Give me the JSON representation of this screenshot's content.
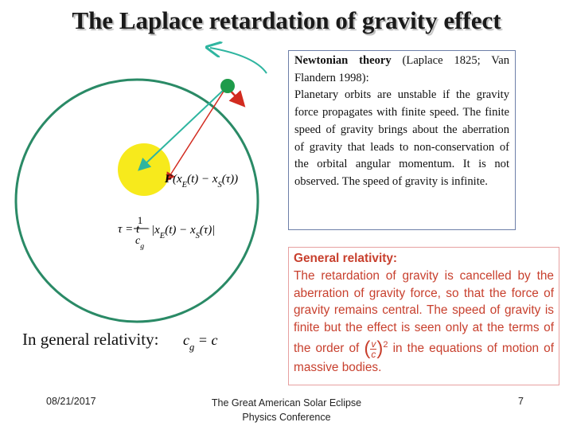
{
  "title": "The Laplace retardation of gravity effect",
  "formulas": {
    "force": [
      {
        "t": "F",
        "sub": false
      },
      {
        "t": "(x",
        "sub": false
      },
      {
        "t": "E",
        "sub": true
      },
      {
        "t": "(t) − x",
        "sub": false
      },
      {
        "t": "S",
        "sub": true
      },
      {
        "t": "(τ))",
        "sub": false
      }
    ],
    "retardation": {
      "lhs": "τ = t −",
      "num": "1",
      "den": [
        {
          "t": "c",
          "sub": false
        },
        {
          "t": "g",
          "sub": true
        }
      ],
      "rest": [
        {
          "t": "|x",
          "sub": false
        },
        {
          "t": "E",
          "sub": true
        },
        {
          "t": "(t) − x",
          "sub": false
        },
        {
          "t": "S",
          "sub": true
        },
        {
          "t": "(τ)|",
          "sub": false
        }
      ]
    },
    "gr": [
      {
        "t": "c",
        "sub": false
      },
      {
        "t": "g",
        "sub": true
      },
      {
        "t": " = c",
        "sub": false
      }
    ]
  },
  "gr_label": "In general relativity:",
  "newtonian": {
    "heading": "Newtonian theory",
    "cite": " (Laplace 1825; Van Flandern 1998):",
    "body": "Planetary orbits are unstable if the gravity force propagates with finite speed. The finite speed of gravity brings about the aberration of gravity that leads to non-conservation of the orbital angular momentum. It is not observed. The speed of gravity is infinite."
  },
  "general_relativity": {
    "heading": "General relativity:",
    "body_start": "The retardation of gravity is cancelled by the aberration of gravity force, so that the force of gravity remains central. The speed of gravity is finite but the effect is seen only at the terms of the order of",
    "fraction": {
      "num": "v",
      "den": "c",
      "exp": "2"
    },
    "body_end": "in the equations of motion of massive bodies."
  },
  "footer": {
    "date": "08/21/2017",
    "event": [
      "The Great American Solar Eclipse",
      "Physics Conference"
    ],
    "page": "7"
  }
}
